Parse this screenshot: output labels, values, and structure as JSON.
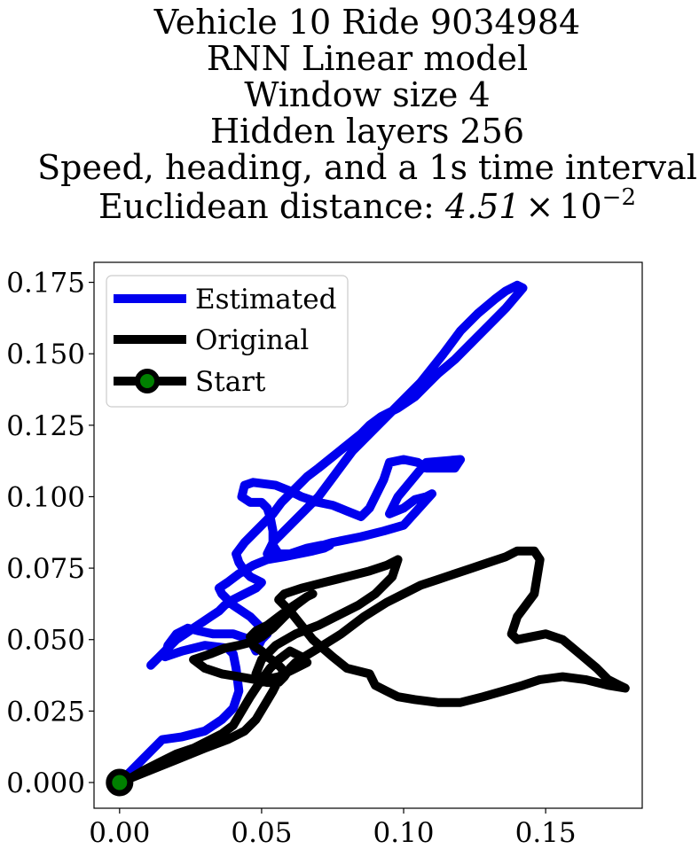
{
  "chart_data": {
    "type": "line",
    "title_lines": [
      "Vehicle 10 Ride 9034984",
      "RNN Linear model",
      "Window size 4",
      "Hidden layers 256",
      "Speed, heading, and a 1s time interval",
      "Euclidean distance: "
    ],
    "distance_mantissa": "4.51",
    "distance_times": "×",
    "distance_base": "10",
    "distance_exponent": "−2",
    "xlabel": "",
    "ylabel": "",
    "xlim": [
      -0.009,
      0.184
    ],
    "ylim": [
      -0.009,
      0.182
    ],
    "x_ticks": [
      {
        "value": 0.0,
        "label": "0.00"
      },
      {
        "value": 0.05,
        "label": "0.05"
      },
      {
        "value": 0.1,
        "label": "0.10"
      },
      {
        "value": 0.15,
        "label": "0.15"
      }
    ],
    "y_ticks": [
      {
        "value": 0.0,
        "label": "0.000"
      },
      {
        "value": 0.025,
        "label": "0.025"
      },
      {
        "value": 0.05,
        "label": "0.050"
      },
      {
        "value": 0.075,
        "label": "0.075"
      },
      {
        "value": 0.1,
        "label": "0.100"
      },
      {
        "value": 0.125,
        "label": "0.125"
      },
      {
        "value": 0.15,
        "label": "0.150"
      },
      {
        "value": 0.175,
        "label": "0.175"
      }
    ],
    "grid": false,
    "legend_position": "top-left",
    "series": [
      {
        "name": "Estimated",
        "color": "#0000ee",
        "x": [
          0.0,
          0.008,
          0.015,
          0.022,
          0.03,
          0.036,
          0.04,
          0.042,
          0.041,
          0.04,
          0.038,
          0.03,
          0.022,
          0.016,
          0.017,
          0.02,
          0.024,
          0.028,
          0.033,
          0.04,
          0.046,
          0.048,
          0.05,
          0.052,
          0.05,
          0.046,
          0.04,
          0.036,
          0.035,
          0.038,
          0.042,
          0.047,
          0.052,
          0.058,
          0.063,
          0.068,
          0.072,
          0.074,
          0.071,
          0.066,
          0.06,
          0.056,
          0.054,
          0.054,
          0.053,
          0.052,
          0.05,
          0.046,
          0.043,
          0.044,
          0.047,
          0.055,
          0.06,
          0.064,
          0.07,
          0.075,
          0.08,
          0.085,
          0.088,
          0.09,
          0.093,
          0.095,
          0.1,
          0.105,
          0.108,
          0.112,
          0.118,
          0.12,
          0.108,
          0.098,
          0.095,
          0.1,
          0.104,
          0.108,
          0.11,
          0.1,
          0.093,
          0.085,
          0.075,
          0.068,
          0.06,
          0.055,
          0.052,
          0.054,
          0.058,
          0.064,
          0.07,
          0.076,
          0.082,
          0.09,
          0.098,
          0.106,
          0.114,
          0.12,
          0.126,
          0.132,
          0.136,
          0.14,
          0.142,
          0.136,
          0.13,
          0.124,
          0.118,
          0.112,
          0.108,
          0.104,
          0.098,
          0.092,
          0.088,
          0.085,
          0.08,
          0.075,
          0.07,
          0.066,
          0.063,
          0.06,
          0.057,
          0.054,
          0.051,
          0.048,
          0.044,
          0.041,
          0.042,
          0.044,
          0.046,
          0.05,
          0.048,
          0.044,
          0.04,
          0.037,
          0.035,
          0.032,
          0.029,
          0.026,
          0.023,
          0.02,
          0.017,
          0.014,
          0.011
        ],
        "y": [
          0.0,
          0.008,
          0.015,
          0.016,
          0.018,
          0.022,
          0.026,
          0.032,
          0.04,
          0.045,
          0.047,
          0.048,
          0.046,
          0.044,
          0.048,
          0.052,
          0.054,
          0.053,
          0.052,
          0.052,
          0.05,
          0.046,
          0.05,
          0.052,
          0.054,
          0.058,
          0.062,
          0.066,
          0.068,
          0.07,
          0.073,
          0.076,
          0.078,
          0.079,
          0.08,
          0.081,
          0.082,
          0.083,
          0.083,
          0.082,
          0.08,
          0.08,
          0.083,
          0.088,
          0.093,
          0.096,
          0.098,
          0.098,
          0.1,
          0.104,
          0.105,
          0.104,
          0.102,
          0.1,
          0.098,
          0.097,
          0.095,
          0.093,
          0.096,
          0.1,
          0.106,
          0.112,
          0.113,
          0.112,
          0.11,
          0.11,
          0.11,
          0.113,
          0.112,
          0.1,
          0.094,
          0.096,
          0.099,
          0.1,
          0.101,
          0.09,
          0.088,
          0.086,
          0.084,
          0.082,
          0.08,
          0.079,
          0.08,
          0.084,
          0.088,
          0.094,
          0.1,
          0.108,
          0.116,
          0.124,
          0.132,
          0.14,
          0.15,
          0.158,
          0.164,
          0.169,
          0.172,
          0.174,
          0.173,
          0.166,
          0.16,
          0.154,
          0.148,
          0.143,
          0.139,
          0.135,
          0.131,
          0.128,
          0.125,
          0.122,
          0.118,
          0.114,
          0.11,
          0.107,
          0.104,
          0.101,
          0.098,
          0.094,
          0.091,
          0.088,
          0.084,
          0.08,
          0.077,
          0.074,
          0.072,
          0.07,
          0.068,
          0.066,
          0.064,
          0.062,
          0.06,
          0.058,
          0.056,
          0.054,
          0.052,
          0.05,
          0.047,
          0.044,
          0.041
        ]
      },
      {
        "name": "Original",
        "color": "#000000",
        "x": [
          0.0,
          0.01,
          0.02,
          0.03,
          0.038,
          0.044,
          0.048,
          0.051,
          0.054,
          0.056,
          0.058,
          0.057,
          0.055,
          0.052,
          0.05,
          0.047,
          0.046,
          0.048,
          0.052,
          0.056,
          0.06,
          0.063,
          0.066,
          0.068,
          0.066,
          0.062,
          0.058,
          0.054,
          0.05,
          0.046,
          0.042,
          0.037,
          0.032,
          0.026,
          0.03,
          0.036,
          0.042,
          0.048,
          0.052,
          0.056,
          0.058,
          0.06,
          0.062,
          0.065,
          0.07,
          0.078,
          0.086,
          0.094,
          0.1,
          0.106,
          0.112,
          0.118,
          0.124,
          0.13,
          0.136,
          0.14,
          0.146,
          0.148,
          0.147,
          0.146,
          0.143,
          0.14,
          0.138,
          0.14,
          0.15,
          0.156,
          0.162,
          0.168,
          0.172,
          0.176,
          0.178,
          0.172,
          0.164,
          0.156,
          0.148,
          0.142,
          0.135,
          0.128,
          0.12,
          0.112,
          0.104,
          0.098,
          0.094,
          0.09,
          0.088,
          0.08,
          0.075,
          0.068,
          0.064,
          0.06,
          0.056,
          0.058,
          0.064,
          0.072,
          0.08,
          0.088,
          0.094,
          0.098,
          0.096,
          0.09,
          0.084,
          0.076,
          0.07,
          0.062,
          0.055,
          0.05,
          0.048,
          0.051,
          0.056,
          0.062,
          0.066,
          0.064,
          0.06,
          0.056,
          0.053,
          0.05,
          0.046,
          0.043,
          0.04,
          0.036,
          0.03,
          0.026,
          0.02,
          0.014,
          0.008,
          0.003,
          0.0
        ],
        "y": [
          0.0,
          0.004,
          0.008,
          0.012,
          0.015,
          0.018,
          0.022,
          0.027,
          0.032,
          0.036,
          0.038,
          0.04,
          0.042,
          0.044,
          0.046,
          0.048,
          0.051,
          0.053,
          0.055,
          0.058,
          0.061,
          0.063,
          0.065,
          0.066,
          0.065,
          0.062,
          0.058,
          0.054,
          0.051,
          0.049,
          0.048,
          0.047,
          0.045,
          0.043,
          0.04,
          0.038,
          0.037,
          0.036,
          0.035,
          0.035,
          0.037,
          0.04,
          0.042,
          0.044,
          0.047,
          0.052,
          0.058,
          0.063,
          0.066,
          0.069,
          0.071,
          0.073,
          0.075,
          0.077,
          0.079,
          0.081,
          0.081,
          0.078,
          0.072,
          0.066,
          0.062,
          0.058,
          0.052,
          0.05,
          0.052,
          0.05,
          0.045,
          0.04,
          0.036,
          0.034,
          0.033,
          0.034,
          0.036,
          0.037,
          0.036,
          0.034,
          0.032,
          0.03,
          0.028,
          0.028,
          0.029,
          0.03,
          0.032,
          0.034,
          0.038,
          0.04,
          0.044,
          0.05,
          0.055,
          0.06,
          0.064,
          0.066,
          0.068,
          0.07,
          0.072,
          0.074,
          0.076,
          0.078,
          0.072,
          0.066,
          0.062,
          0.058,
          0.055,
          0.052,
          0.048,
          0.043,
          0.038,
          0.036,
          0.037,
          0.04,
          0.042,
          0.044,
          0.046,
          0.043,
          0.04,
          0.036,
          0.03,
          0.025,
          0.02,
          0.017,
          0.014,
          0.012,
          0.01,
          0.007,
          0.004,
          0.001,
          0.0
        ]
      }
    ],
    "start_marker": {
      "name": "Start",
      "x": 0.0,
      "y": 0.0,
      "edge_color": "#000000",
      "face_color": "#008000"
    }
  }
}
